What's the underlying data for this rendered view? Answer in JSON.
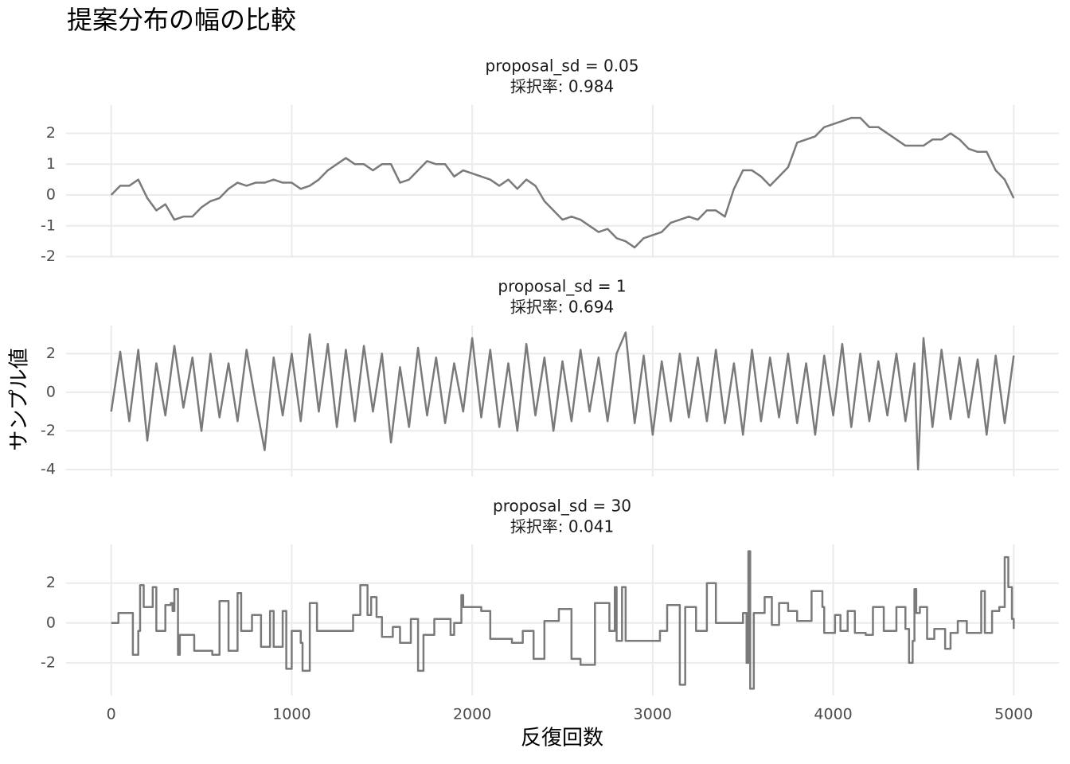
{
  "title": "提案分布の幅の比較",
  "x_label": "反復回数",
  "y_label": "サンプル値",
  "chart_data": [
    {
      "type": "line",
      "title": "proposal_sd = 0.05",
      "subtitle": "採択率: 0.984",
      "color": "#7a7a7a",
      "grid": true,
      "xlim": [
        -250,
        5250
      ],
      "xticks": [
        0,
        1000,
        2000,
        3000,
        4000,
        5000
      ],
      "ylim": [
        -2.03,
        2.93
      ],
      "yticks": [
        -2,
        -1,
        0,
        1,
        2
      ],
      "x": [
        0,
        50,
        100,
        150,
        200,
        250,
        300,
        350,
        400,
        450,
        500,
        550,
        600,
        650,
        700,
        750,
        800,
        850,
        900,
        950,
        1000,
        1050,
        1100,
        1150,
        1200,
        1250,
        1300,
        1350,
        1400,
        1450,
        1500,
        1550,
        1600,
        1650,
        1700,
        1750,
        1800,
        1850,
        1900,
        1950,
        2000,
        2050,
        2100,
        2150,
        2200,
        2250,
        2300,
        2350,
        2400,
        2450,
        2500,
        2550,
        2600,
        2650,
        2700,
        2750,
        2800,
        2850,
        2900,
        2950,
        3000,
        3050,
        3100,
        3150,
        3200,
        3250,
        3300,
        3350,
        3400,
        3450,
        3500,
        3550,
        3600,
        3650,
        3700,
        3750,
        3800,
        3850,
        3900,
        3950,
        4000,
        4050,
        4100,
        4150,
        4200,
        4250,
        4300,
        4350,
        4400,
        4450,
        4500,
        4550,
        4600,
        4650,
        4700,
        4750,
        4800,
        4850,
        4900,
        4950,
        5000
      ],
      "values": [
        0.0,
        0.3,
        0.3,
        0.5,
        -0.1,
        -0.5,
        -0.3,
        -0.8,
        -0.7,
        -0.7,
        -0.4,
        -0.2,
        -0.1,
        0.2,
        0.4,
        0.3,
        0.4,
        0.4,
        0.5,
        0.4,
        0.4,
        0.2,
        0.3,
        0.5,
        0.8,
        1.0,
        1.2,
        1.0,
        1.0,
        0.8,
        1.0,
        1.0,
        0.4,
        0.5,
        0.8,
        1.1,
        1.0,
        1.0,
        0.6,
        0.8,
        0.7,
        0.6,
        0.5,
        0.3,
        0.5,
        0.2,
        0.5,
        0.3,
        -0.2,
        -0.5,
        -0.8,
        -0.7,
        -0.8,
        -1.0,
        -1.2,
        -1.1,
        -1.4,
        -1.5,
        -1.7,
        -1.4,
        -1.3,
        -1.2,
        -0.9,
        -0.8,
        -0.7,
        -0.8,
        -0.5,
        -0.5,
        -0.7,
        0.2,
        0.8,
        0.8,
        0.6,
        0.3,
        0.6,
        0.9,
        1.7,
        1.8,
        1.9,
        2.2,
        2.3,
        2.4,
        2.5,
        2.5,
        2.2,
        2.2,
        2.0,
        1.8,
        1.6,
        1.6,
        1.6,
        1.8,
        1.8,
        2.0,
        1.8,
        1.5,
        1.4,
        1.4,
        0.8,
        0.5,
        -0.1
      ]
    },
    {
      "type": "line",
      "title": "proposal_sd = 1",
      "subtitle": "採択率: 0.694",
      "color": "#7a7a7a",
      "grid": true,
      "xlim": [
        -250,
        5250
      ],
      "xticks": [
        0,
        1000,
        2000,
        3000,
        4000,
        5000
      ],
      "ylim": [
        -4.355,
        3.455
      ],
      "yticks": [
        -4,
        -2,
        0,
        2
      ],
      "x": [
        0,
        50,
        100,
        150,
        200,
        250,
        300,
        350,
        400,
        450,
        500,
        550,
        600,
        650,
        700,
        750,
        800,
        850,
        900,
        950,
        1000,
        1050,
        1100,
        1150,
        1200,
        1250,
        1300,
        1350,
        1400,
        1450,
        1500,
        1550,
        1600,
        1650,
        1700,
        1750,
        1800,
        1850,
        1900,
        1950,
        2000,
        2050,
        2100,
        2150,
        2200,
        2250,
        2300,
        2350,
        2400,
        2450,
        2500,
        2550,
        2600,
        2650,
        2700,
        2750,
        2800,
        2850,
        2900,
        2950,
        3000,
        3050,
        3100,
        3150,
        3200,
        3250,
        3300,
        3350,
        3400,
        3450,
        3500,
        3550,
        3600,
        3650,
        3700,
        3750,
        3800,
        3850,
        3900,
        3950,
        4000,
        4050,
        4100,
        4150,
        4200,
        4250,
        4300,
        4350,
        4400,
        4450,
        4470,
        4500,
        4550,
        4600,
        4650,
        4700,
        4750,
        4800,
        4850,
        4900,
        4950,
        5000
      ],
      "values": [
        -1.0,
        2.1,
        -1.5,
        2.2,
        -2.5,
        1.5,
        -1.2,
        2.4,
        -0.8,
        1.8,
        -2.0,
        2.0,
        -1.3,
        1.5,
        -1.5,
        2.2,
        -0.5,
        -3.0,
        1.8,
        -1.2,
        2.0,
        -1.5,
        3.0,
        -1.0,
        2.5,
        -1.8,
        2.2,
        -1.5,
        2.4,
        -1.0,
        2.0,
        -2.6,
        1.3,
        -1.8,
        2.3,
        -1.2,
        1.8,
        -1.6,
        1.5,
        -1.0,
        2.8,
        -1.3,
        2.2,
        -1.8,
        1.5,
        -2.0,
        2.5,
        -1.2,
        1.8,
        -2.0,
        1.6,
        -1.5,
        2.2,
        -1.0,
        1.8,
        -1.5,
        2.0,
        3.1,
        -1.6,
        1.9,
        -2.2,
        1.6,
        -1.5,
        2.0,
        -1.3,
        1.8,
        -1.5,
        2.2,
        -1.6,
        1.5,
        -2.2,
        2.2,
        -1.5,
        1.8,
        -1.3,
        2.0,
        -1.6,
        1.5,
        -2.2,
        1.9,
        -1.2,
        2.5,
        -1.8,
        2.0,
        -1.5,
        1.6,
        -1.2,
        2.0,
        -1.5,
        1.5,
        -4.0,
        2.8,
        -1.8,
        2.2,
        -1.4,
        1.8,
        -1.3,
        1.7,
        -2.2,
        1.9,
        -1.6,
        1.9
      ]
    },
    {
      "type": "line",
      "title": "proposal_sd = 30",
      "subtitle": "採択率: 0.041",
      "color": "#7a7a7a",
      "grid": true,
      "step": true,
      "xlim": [
        -250,
        5250
      ],
      "xticks": [
        0,
        1000,
        2000,
        3000,
        4000,
        5000
      ],
      "ylim": [
        -3.645,
        3.945
      ],
      "yticks": [
        -2,
        0,
        2
      ],
      "x": [
        0,
        40,
        120,
        150,
        160,
        180,
        230,
        250,
        300,
        330,
        340,
        350,
        370,
        380,
        460,
        560,
        600,
        650,
        700,
        720,
        780,
        830,
        880,
        900,
        950,
        970,
        1000,
        1050,
        1060,
        1100,
        1140,
        1300,
        1340,
        1380,
        1420,
        1440,
        1470,
        1500,
        1560,
        1600,
        1660,
        1700,
        1730,
        1790,
        1880,
        1900,
        1940,
        1950,
        2050,
        2100,
        2180,
        2220,
        2280,
        2340,
        2400,
        2480,
        2550,
        2600,
        2680,
        2760,
        2790,
        2800,
        2830,
        2850,
        2950,
        3040,
        3080,
        3150,
        3180,
        3240,
        3300,
        3350,
        3500,
        3520,
        3530,
        3540,
        3560,
        3620,
        3660,
        3700,
        3750,
        3800,
        3880,
        3940,
        3950,
        4010,
        4040,
        4080,
        4120,
        4180,
        4220,
        4280,
        4350,
        4400,
        4420,
        4440,
        4450,
        4460,
        4480,
        4520,
        4560,
        4620,
        4650,
        4690,
        4740,
        4820,
        4840,
        4880,
        4920,
        4950,
        4970,
        4990,
        5000
      ],
      "values": [
        0.0,
        0.5,
        -1.6,
        -0.4,
        1.9,
        0.8,
        1.8,
        -0.4,
        0.9,
        1.0,
        0.6,
        1.7,
        -1.6,
        -0.6,
        -1.4,
        -1.6,
        1.1,
        -1.4,
        1.5,
        -0.4,
        0.4,
        -1.2,
        0.6,
        -1.2,
        0.6,
        -2.3,
        -0.4,
        -1.0,
        -2.4,
        1.0,
        -0.4,
        -0.4,
        0.4,
        1.9,
        0.4,
        1.3,
        0.3,
        -0.7,
        -0.2,
        -1.0,
        0.2,
        -2.4,
        -0.6,
        0.2,
        -0.6,
        0.0,
        1.4,
        0.8,
        0.6,
        -0.8,
        -0.8,
        -1.0,
        -0.4,
        -1.8,
        0.1,
        0.7,
        -1.8,
        -2.1,
        1.0,
        -0.4,
        1.8,
        -0.9,
        1.8,
        -0.9,
        -0.9,
        -0.4,
        0.9,
        -3.1,
        0.8,
        -0.4,
        2.0,
        0.0,
        0.5,
        -2.0,
        3.6,
        -3.3,
        0.5,
        1.3,
        -0.1,
        1.0,
        0.6,
        0.1,
        1.6,
        0.8,
        -0.5,
        0.4,
        -0.4,
        0.6,
        -0.5,
        -0.6,
        0.8,
        -0.4,
        0.8,
        -0.3,
        -2.0,
        -0.9,
        1.7,
        0.5,
        0.8,
        -0.8,
        -0.3,
        -1.3,
        -0.5,
        0.1,
        -0.5,
        1.6,
        -0.5,
        0.6,
        0.8,
        3.3,
        1.8,
        0.2,
        -0.3
      ]
    }
  ]
}
